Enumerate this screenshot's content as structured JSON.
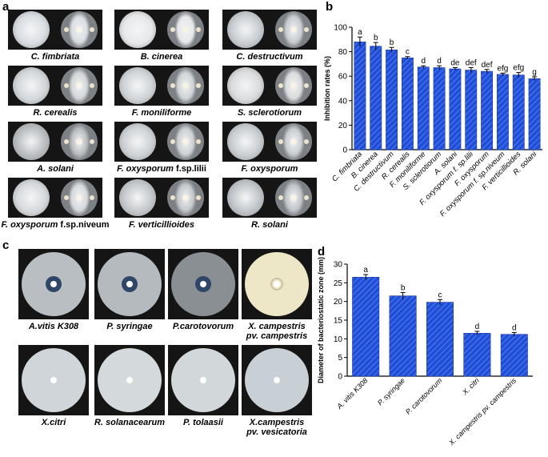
{
  "panels": {
    "a": "a",
    "b": "b",
    "c": "c",
    "d": "d"
  },
  "fungi_plates": [
    {
      "name": "C.  fimbriata",
      "suffix": ""
    },
    {
      "name": "B.  cinerea",
      "suffix": ""
    },
    {
      "name": "C.  destructivum",
      "suffix": ""
    },
    {
      "name": "R.  cerealis",
      "suffix": ""
    },
    {
      "name": "F.  moniliforme",
      "suffix": ""
    },
    {
      "name": "S.  sclerotiorum",
      "suffix": ""
    },
    {
      "name": "A.  solani",
      "suffix": ""
    },
    {
      "name": "F.  oxysporum",
      "suffix": " f.sp.lilii"
    },
    {
      "name": "F.  oxysporum",
      "suffix": ""
    },
    {
      "name": "F.  oxysporum",
      "suffix": " f.sp.niveum"
    },
    {
      "name": "F.  verticillioides",
      "suffix": ""
    },
    {
      "name": "R.  solani",
      "suffix": ""
    }
  ],
  "bacteria_plates": [
    {
      "line1": "A.vitis K308",
      "line2": ""
    },
    {
      "line1": "P.  syringae",
      "line2": ""
    },
    {
      "line1": "P.carotovorum",
      "line2": ""
    },
    {
      "line1": "X.  campestris",
      "line2": "pv. campestris"
    },
    {
      "line1": "X.citri",
      "line2": ""
    },
    {
      "line1": "R.  solanacearum",
      "line2": ""
    },
    {
      "line1": "P.  tolaasii",
      "line2": ""
    },
    {
      "line1": "X.campestris",
      "line2": "pv. vesicatoria"
    }
  ],
  "colors": {
    "bar_fill": "#1f4fd8",
    "bar_hatch": "#6f8ff0",
    "axis": "#000000"
  },
  "chart_data": [
    {
      "panel": "b",
      "type": "bar",
      "ylabel": "Inhibition rates (%)",
      "ylim": [
        0,
        100
      ],
      "yticks": [
        0,
        20,
        40,
        60,
        80,
        100
      ],
      "categories": [
        "C. fimbriata",
        "B. cinerea",
        "C. destructivum",
        "R. cerealis",
        "F. moniliforme",
        "S. sclerotiorum",
        "A. solani",
        "F. oxysporum f. sp.lilii",
        "F. oxysporum",
        "F. oxysporum f. sp.niveum",
        "F. verticillioides",
        "R. solani"
      ],
      "values": [
        88,
        84.5,
        81.5,
        75,
        67.5,
        67,
        66,
        65,
        64,
        61.5,
        61,
        58
      ],
      "errors": [
        4,
        3,
        2,
        1,
        1,
        1.5,
        1,
        2,
        1.5,
        1,
        2,
        1.5
      ],
      "letters": [
        "a",
        "b",
        "b",
        "c",
        "d",
        "d",
        "de",
        "def",
        "def",
        "efg",
        "efg",
        "g"
      ]
    },
    {
      "panel": "d",
      "type": "bar",
      "ylabel": "Diameter of bacteriostatic zone (mm)",
      "ylim": [
        0,
        30
      ],
      "yticks": [
        0,
        5,
        10,
        15,
        20,
        25,
        30
      ],
      "categories": [
        "A. vitis K308",
        "P. syringae",
        "P. carotovorum",
        "X. citri",
        "X. campestris pv. campestris"
      ],
      "values": [
        26.5,
        21.5,
        19.8,
        11.5,
        11.2
      ],
      "errors": [
        0.7,
        0.9,
        0.7,
        0.5,
        0.5
      ],
      "letters": [
        "a",
        "b",
        "c",
        "d",
        "d"
      ]
    }
  ]
}
